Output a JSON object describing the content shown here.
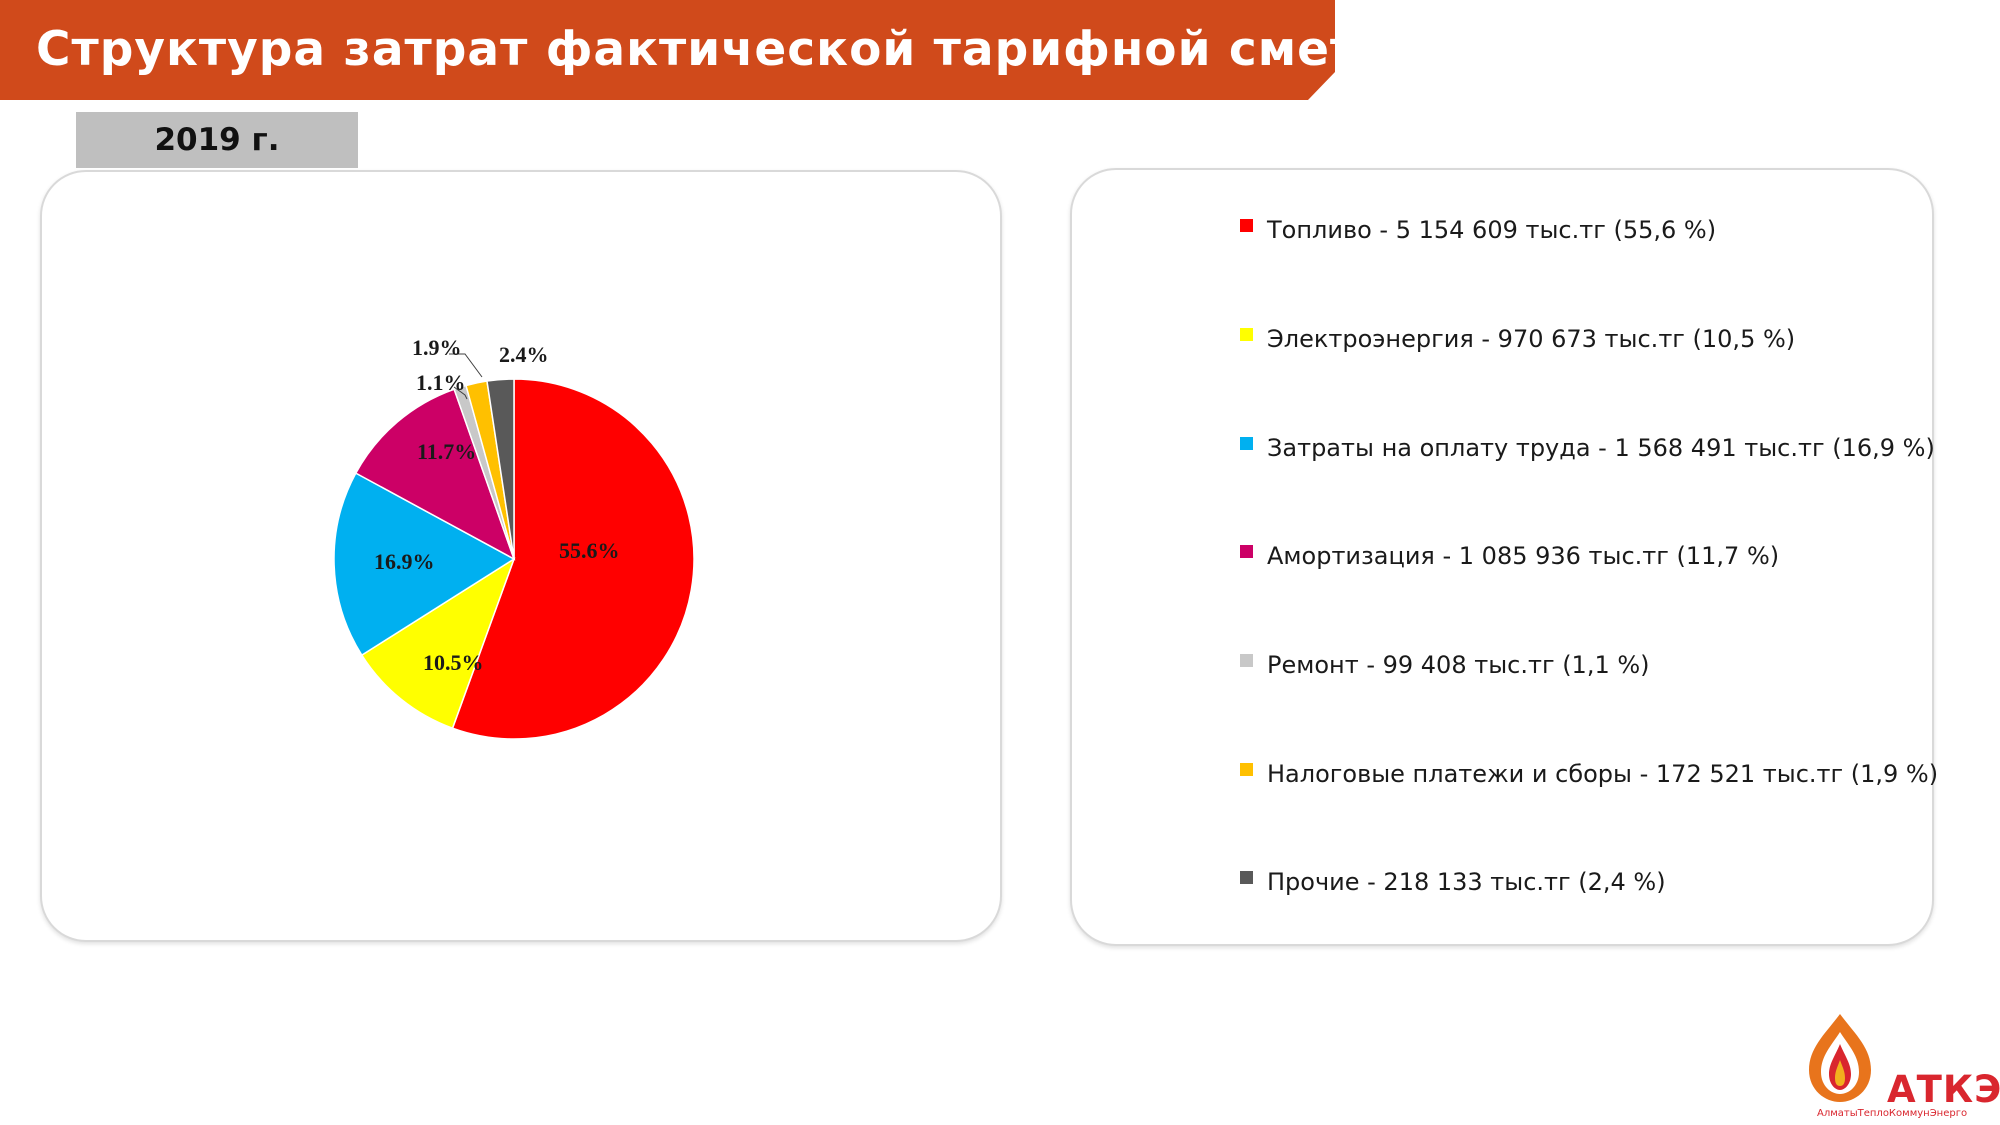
{
  "header": {
    "title": "Структура затрат фактической тарифной сметы",
    "accent_color": "#D04A1B"
  },
  "year_badge": "2019 г.",
  "chart_data": {
    "type": "pie",
    "categories": [
      "Топливо",
      "Электроэнергия",
      "Затраты на оплату труда",
      "Амортизация",
      "Ремонт",
      "Налоговые платежи и сборы",
      "Прочие"
    ],
    "values": [
      55.6,
      10.5,
      16.9,
      11.7,
      1.1,
      1.9,
      2.4
    ],
    "data_labels": [
      "55.6%",
      "10.5%",
      "16.9%",
      "11.7%",
      "1.1%",
      "1.9%",
      "2.4%"
    ],
    "colors": [
      "#FF0000",
      "#FFFF00",
      "#00B0F0",
      "#CC0066",
      "#C8C8C8",
      "#FFC000",
      "#595959"
    ],
    "legend_placement": "right"
  },
  "legend": [
    {
      "text": "Топливо - 5 154 609 тыс.тг (55,6 %)",
      "color": "#FF0000"
    },
    {
      "text": "Электроэнергия - 970 673 тыс.тг (10,5 %)",
      "color": "#FFFF00"
    },
    {
      "text": "Затраты на оплату труда - 1 568 491 тыс.тг (16,9 %)",
      "color": "#00B0F0"
    },
    {
      "text": "Амортизация - 1 085 936 тыс.тг (11,7 %)",
      "color": "#CC0066"
    },
    {
      "text": "Ремонт - 99 408 тыс.тг (1,1 %)",
      "color": "#C8C8C8"
    },
    {
      "text": "Налоговые платежи и сборы - 172 521 тыс.тг (1,9 %)",
      "color": "#FFC000"
    },
    {
      "text": "Прочие - 218 133 тыс.тг (2,4 %)",
      "color": "#595959"
    }
  ],
  "logo": {
    "name": "АТКЭ",
    "subtitle": "АлматыТеплоКоммунЭнерго",
    "icon": "flame-logo-icon"
  }
}
